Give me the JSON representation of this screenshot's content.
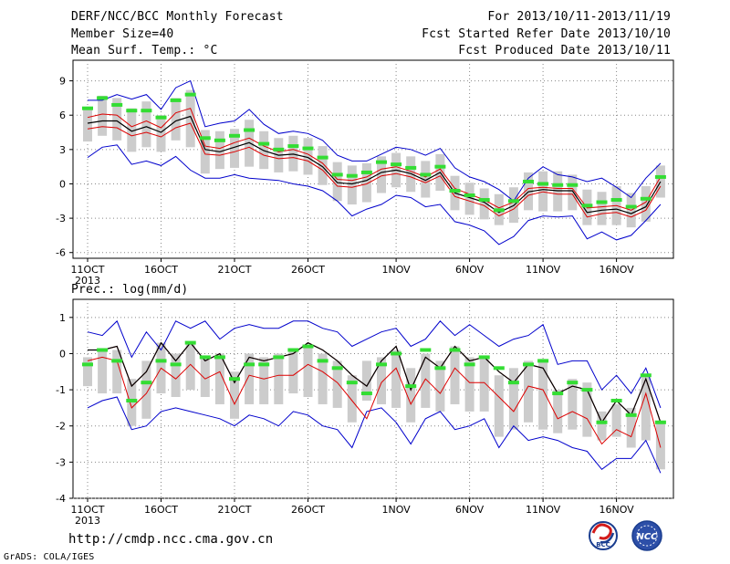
{
  "header": {
    "title": "DERF/NCC/BCC Monthly Forecast",
    "member": "Member Size=40",
    "variable": "Mean Surf. Temp.: °C",
    "period": "For 2013/10/11-2013/11/19",
    "started": "Fcst Started Refer Date 2013/10/10",
    "produced": "Fcst Produced Date 2013/10/11"
  },
  "footer": {
    "url": "http://cmdp.ncc.cma.gov.cn",
    "grads": "GrADS: COLA/IGES",
    "logo_left_text": "BCC",
    "logo_right_text": "NCC"
  },
  "colors": {
    "envelope": "#0000cc",
    "spread": "#dd0000",
    "mean": "#000000",
    "box": "#cccccc",
    "member_dash": "#33dd33",
    "grid": "#888888"
  },
  "chart_data": [
    {
      "type": "line",
      "title": "Mean Surf. Temp.: °C",
      "xticks": [
        "11OCT",
        "16OCT",
        "21OCT",
        "26OCT",
        "1NOV",
        "6NOV",
        "11NOV",
        "16NOV"
      ],
      "xtick_days": [
        1,
        6,
        11,
        16,
        22,
        27,
        32,
        37
      ],
      "year_label": "2013",
      "yticks": [
        -6,
        -3,
        0,
        3,
        6,
        9
      ],
      "ylim": [
        -6.5,
        10.8
      ],
      "grid": true,
      "days": [
        1,
        2,
        3,
        4,
        5,
        6,
        7,
        8,
        9,
        10,
        11,
        12,
        13,
        14,
        15,
        16,
        17,
        18,
        19,
        20,
        21,
        22,
        23,
        24,
        25,
        26,
        27,
        28,
        29,
        30,
        31,
        32,
        33,
        34,
        35,
        36,
        37,
        38,
        39,
        40
      ],
      "series": [
        {
          "values": [
            7.3,
            7.3,
            7.8,
            7.4,
            7.8,
            6.5,
            8.4,
            9.0,
            5.0,
            5.3,
            5.5,
            6.5,
            5.2,
            4.4,
            4.6,
            4.4,
            3.8,
            2.5,
            2.0,
            2.0,
            2.6,
            3.2,
            3.0,
            2.5,
            3.1,
            1.4,
            0.6,
            0.2,
            -0.5,
            -1.5,
            0.5,
            1.5,
            0.8,
            0.6,
            0.2,
            0.5,
            -0.3,
            -1.2,
            0.5,
            1.8
          ]
        },
        {
          "values": [
            2.3,
            3.2,
            3.4,
            1.7,
            2.0,
            1.6,
            2.4,
            1.2,
            0.5,
            0.5,
            0.8,
            0.5,
            0.4,
            0.3,
            0.0,
            -0.2,
            -0.6,
            -1.5,
            -2.8,
            -2.2,
            -1.8,
            -1.0,
            -1.2,
            -2.0,
            -1.8,
            -3.3,
            -3.6,
            -4.1,
            -5.3,
            -4.6,
            -3.2,
            -2.8,
            -2.9,
            -2.8,
            -4.8,
            -4.2,
            -4.9,
            -4.5,
            -3.2,
            -1.8
          ]
        },
        {
          "values": [
            5.8,
            6.1,
            6.0,
            5.0,
            5.5,
            4.9,
            6.2,
            6.6,
            3.3,
            3.1,
            3.6,
            4.0,
            3.3,
            2.8,
            3.0,
            2.6,
            1.8,
            0.4,
            0.3,
            0.6,
            1.3,
            1.5,
            1.1,
            0.6,
            1.3,
            -0.4,
            -0.9,
            -1.4,
            -2.1,
            -1.6,
            -0.4,
            -0.3,
            -0.4,
            -0.4,
            -2.1,
            -2.0,
            -1.9,
            -2.3,
            -1.6,
            0.6
          ]
        },
        {
          "values": [
            4.8,
            5.0,
            4.9,
            4.2,
            4.5,
            4.1,
            4.9,
            5.3,
            2.6,
            2.5,
            2.8,
            3.2,
            2.5,
            2.2,
            2.3,
            2.0,
            1.2,
            -0.2,
            -0.3,
            0.0,
            0.7,
            0.9,
            0.6,
            0.1,
            0.7,
            -1.1,
            -1.5,
            -1.9,
            -2.8,
            -2.2,
            -1.0,
            -0.7,
            -0.9,
            -0.9,
            -2.9,
            -2.6,
            -2.5,
            -2.9,
            -2.3,
            -0.2
          ]
        },
        {
          "values": [
            5.3,
            5.5,
            5.5,
            4.6,
            5.0,
            4.5,
            5.5,
            5.9,
            3.0,
            2.8,
            3.2,
            3.6,
            2.9,
            2.5,
            2.6,
            2.3,
            1.5,
            0.1,
            0.0,
            0.3,
            1.0,
            1.2,
            0.9,
            0.3,
            1.0,
            -0.8,
            -1.2,
            -1.6,
            -2.5,
            -1.9,
            -0.7,
            -0.5,
            -0.6,
            -0.6,
            -2.5,
            -2.3,
            -2.2,
            -2.6,
            -2.0,
            0.2
          ]
        }
      ],
      "box_top": [
        6.7,
        7.7,
        7.5,
        6.6,
        7.2,
        6.0,
        7.5,
        8.2,
        4.7,
        4.6,
        4.8,
        5.6,
        4.6,
        4.0,
        4.2,
        4.0,
        3.3,
        1.9,
        1.6,
        1.8,
        2.4,
        2.7,
        2.4,
        2.0,
        2.6,
        0.7,
        0.1,
        -0.4,
        -0.9,
        -0.3,
        1.0,
        1.1,
        1.1,
        0.8,
        -0.5,
        -0.7,
        -0.2,
        -0.8,
        -0.2,
        1.6
      ],
      "box_bottom": [
        3.7,
        4.2,
        3.8,
        2.8,
        3.2,
        2.8,
        3.8,
        3.2,
        0.9,
        1.3,
        1.4,
        1.5,
        1.3,
        1.0,
        1.1,
        0.8,
        -0.1,
        -1.5,
        -1.8,
        -1.6,
        -0.8,
        -0.3,
        -0.7,
        -1.2,
        -0.6,
        -2.3,
        -2.7,
        -3.1,
        -3.6,
        -3.4,
        -2.3,
        -2.4,
        -2.4,
        -2.3,
        -3.6,
        -3.6,
        -3.6,
        -3.8,
        -3.3,
        -1.2
      ],
      "member_marks": [
        6.6,
        7.5,
        6.9,
        6.4,
        6.4,
        5.8,
        7.3,
        7.8,
        4.0,
        3.8,
        4.2,
        4.7,
        3.5,
        3.0,
        3.3,
        3.1,
        2.3,
        0.8,
        0.7,
        1.0,
        1.9,
        1.7,
        1.4,
        0.8,
        1.5,
        -0.6,
        -1.0,
        -1.4,
        -2.3,
        -1.5,
        0.2,
        0.0,
        -0.1,
        -0.1,
        -1.9,
        -1.6,
        -1.4,
        -2.0,
        -1.3,
        0.6
      ]
    },
    {
      "type": "line",
      "title": "Prec.: log(mm/d)",
      "xticks": [
        "11OCT",
        "16OCT",
        "21OCT",
        "26OCT",
        "1NOV",
        "6NOV",
        "11NOV",
        "16NOV"
      ],
      "xtick_days": [
        1,
        6,
        11,
        16,
        22,
        27,
        32,
        37
      ],
      "year_label": "2013",
      "yticks": [
        -4,
        -3,
        -2,
        -1,
        0,
        1
      ],
      "ylim": [
        -4,
        1.5
      ],
      "grid": true,
      "days": [
        1,
        2,
        3,
        4,
        5,
        6,
        7,
        8,
        9,
        10,
        11,
        12,
        13,
        14,
        15,
        16,
        17,
        18,
        19,
        20,
        21,
        22,
        23,
        24,
        25,
        26,
        27,
        28,
        29,
        30,
        31,
        32,
        33,
        34,
        35,
        36,
        37,
        38,
        39,
        40
      ],
      "series": [
        {
          "values": [
            0.6,
            0.5,
            0.9,
            -0.1,
            0.6,
            0.1,
            0.9,
            0.7,
            0.9,
            0.4,
            0.7,
            0.8,
            0.7,
            0.7,
            0.9,
            0.9,
            0.7,
            0.6,
            0.2,
            0.4,
            0.6,
            0.7,
            0.2,
            0.4,
            0.9,
            0.5,
            0.8,
            0.5,
            0.2,
            0.4,
            0.5,
            0.8,
            -0.3,
            -0.2,
            -0.2,
            -1.0,
            -0.6,
            -1.1,
            -0.4,
            -1.5
          ]
        },
        {
          "values": [
            -1.5,
            -1.3,
            -1.2,
            -2.1,
            -2.0,
            -1.6,
            -1.5,
            -1.6,
            -1.7,
            -1.8,
            -2.0,
            -1.7,
            -1.8,
            -2.0,
            -1.6,
            -1.7,
            -2.0,
            -2.1,
            -2.6,
            -1.6,
            -1.5,
            -1.9,
            -2.5,
            -1.8,
            -1.6,
            -2.1,
            -2.0,
            -1.8,
            -2.6,
            -2.0,
            -2.4,
            -2.3,
            -2.4,
            -2.6,
            -2.7,
            -3.2,
            -2.9,
            -2.9,
            -2.4,
            -3.3
          ]
        },
        {
          "values": [
            0.1,
            0.1,
            0.2,
            -0.9,
            -0.5,
            0.3,
            -0.2,
            0.3,
            -0.2,
            0.0,
            -0.8,
            -0.1,
            -0.2,
            -0.1,
            0.0,
            0.3,
            0.1,
            -0.2,
            -0.6,
            -0.9,
            -0.2,
            0.2,
            -1.0,
            -0.1,
            -0.4,
            0.2,
            -0.2,
            -0.1,
            -0.5,
            -0.8,
            -0.3,
            -0.4,
            -1.1,
            -0.9,
            -1.0,
            -1.9,
            -1.3,
            -1.7,
            -0.7,
            -1.9
          ]
        },
        {
          "values": [
            -0.2,
            -0.1,
            -0.2,
            -1.5,
            -1.1,
            -0.4,
            -0.7,
            -0.3,
            -0.7,
            -0.5,
            -1.4,
            -0.6,
            -0.7,
            -0.6,
            -0.6,
            -0.3,
            -0.5,
            -0.8,
            -1.3,
            -1.8,
            -0.8,
            -0.4,
            -1.4,
            -0.7,
            -1.1,
            -0.4,
            -0.8,
            -0.8,
            -1.2,
            -1.6,
            -0.9,
            -1.0,
            -1.8,
            -1.6,
            -1.8,
            -2.5,
            -2.1,
            -2.3,
            -1.1,
            -2.6
          ]
        },
        {
          "values": [
            0.1,
            0.1,
            0.2,
            -0.9,
            -0.5,
            0.3,
            -0.2,
            0.3,
            -0.2,
            0.0,
            -0.8,
            -0.1,
            -0.2,
            -0.1,
            0.0,
            0.3,
            0.1,
            -0.2,
            -0.6,
            -0.9,
            -0.2,
            0.2,
            -1.0,
            -0.1,
            -0.4,
            0.2,
            -0.2,
            -0.1,
            -0.5,
            -0.8,
            -0.3,
            -0.4,
            -1.1,
            -0.9,
            -1.0,
            -1.9,
            -1.3,
            -1.7,
            -0.7,
            -1.9
          ]
        }
      ],
      "box_top": [
        -0.1,
        0.1,
        0.1,
        -0.7,
        -0.2,
        0.3,
        0.0,
        0.3,
        -0.1,
        0.0,
        -0.5,
        0.0,
        -0.1,
        0.0,
        0.1,
        0.2,
        0.0,
        -0.2,
        -0.6,
        -0.2,
        -0.1,
        0.1,
        -0.4,
        0.0,
        -0.2,
        0.2,
        -0.1,
        -0.1,
        -0.6,
        -0.4,
        -0.2,
        -0.2,
        -1.0,
        -0.7,
        -0.8,
        -1.6,
        -1.4,
        -1.5,
        -0.6,
        -1.9
      ],
      "box_bottom": [
        -0.9,
        -1.1,
        -1.1,
        -2.0,
        -1.8,
        -1.1,
        -1.2,
        -1.0,
        -1.2,
        -1.4,
        -1.8,
        -1.4,
        -1.4,
        -1.4,
        -1.1,
        -1.2,
        -1.4,
        -1.5,
        -1.9,
        -1.3,
        -1.4,
        -1.5,
        -1.9,
        -1.5,
        -1.6,
        -1.4,
        -1.6,
        -1.6,
        -2.3,
        -2.1,
        -1.9,
        -2.1,
        -2.2,
        -2.1,
        -2.3,
        -2.4,
        -2.3,
        -2.6,
        -2.4,
        -3.2
      ],
      "member_marks": [
        -0.3,
        0.1,
        -0.2,
        -1.3,
        -0.8,
        -0.2,
        -0.3,
        0.3,
        -0.1,
        -0.1,
        -0.7,
        -0.3,
        -0.3,
        -0.1,
        0.1,
        0.2,
        -0.2,
        -0.4,
        -0.8,
        -1.1,
        -0.3,
        0.0,
        -0.9,
        0.1,
        -0.4,
        0.1,
        -0.3,
        -0.1,
        -0.4,
        -0.8,
        -0.3,
        -0.2,
        -1.1,
        -0.8,
        -1.0,
        -1.9,
        -1.3,
        -1.7,
        -0.6,
        -1.9
      ]
    }
  ]
}
